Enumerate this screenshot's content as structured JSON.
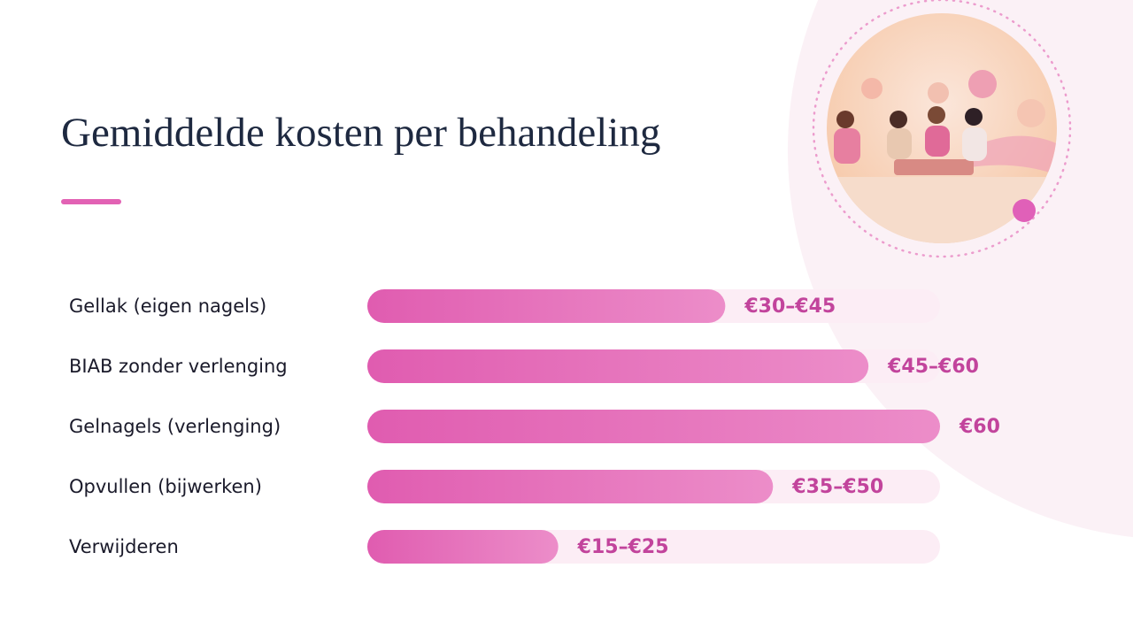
{
  "chart_data": {
    "type": "hbar",
    "title": "Gemiddelde kosten per behandeling",
    "categories": [
      "Gellak (eigen nagels)",
      "BIAB zonder verlenging",
      "Gelnagels (verlenging)",
      "Opvullen (bijwerken)",
      "Verwijderen"
    ],
    "values": [
      37.5,
      52.5,
      60,
      42.5,
      20
    ],
    "value_labels": [
      "€30–€45",
      "€45–€60",
      "€60",
      "€35–€50",
      "€15–€25"
    ],
    "xlim": [
      0,
      60
    ],
    "color": "#e262b4"
  }
}
